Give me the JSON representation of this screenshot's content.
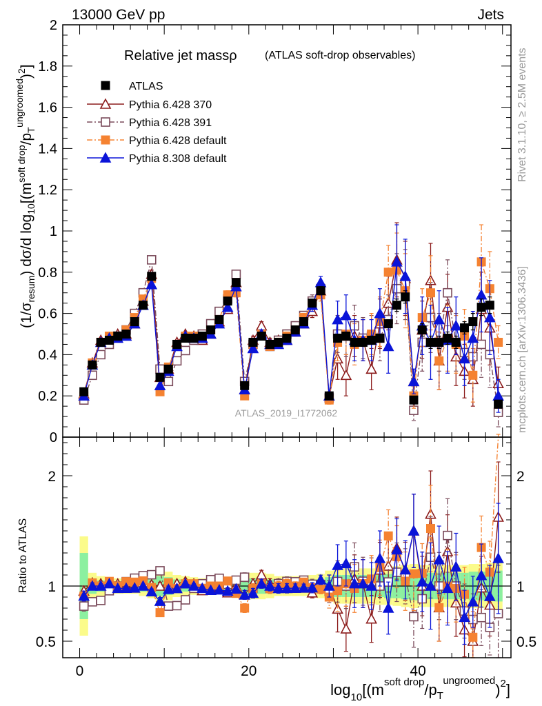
{
  "header": {
    "left": "13000 GeV pp",
    "right": "Jets"
  },
  "side_labels": {
    "rivet": "Rivet 3.1.10, ≥ 2.5M events",
    "mcplots": "mcplots.cern.ch [arXiv:1306.3436]"
  },
  "watermark": "ATLAS_2019_I1772062",
  "chart_data": [
    {
      "type": "scatter",
      "title": "Relative jet massρ",
      "subtitle": "(ATLAS soft-drop observables)",
      "ylabel": "(1/σresum) dσ/d log10[(msoft drop/pTungroomed)2]",
      "xlim": [
        -2,
        51
      ],
      "ylim": [
        0,
        2
      ],
      "y_ticks": [
        0,
        0.2,
        0.4,
        0.6,
        0.8,
        1,
        1.2,
        1.4,
        1.6,
        1.8,
        2
      ],
      "y_tick_labels": [
        "0",
        "0.2",
        "0.4",
        "0.6",
        "0.8",
        "1",
        "1.2",
        "1.4",
        "1.6",
        "1.8",
        "2"
      ],
      "legend_position": "top-left",
      "x": [
        0.5,
        1.5,
        2.5,
        3.5,
        4.5,
        5.5,
        6.5,
        7.5,
        8.5,
        9.5,
        10.5,
        11.5,
        12.5,
        13.5,
        14.5,
        15.5,
        16.5,
        17.5,
        18.5,
        19.5,
        20.5,
        21.5,
        22.5,
        23.5,
        24.5,
        25.5,
        26.5,
        27.5,
        28.5,
        29.5,
        30.5,
        31.5,
        32.5,
        33.5,
        34.5,
        35.5,
        36.5,
        37.5,
        38.5,
        39.5,
        40.5,
        41.5,
        42.5,
        43.5,
        44.5,
        45.5,
        46.5,
        47.5,
        48.5,
        49.5
      ],
      "series": [
        {
          "name": "ATLAS",
          "color": "#000000",
          "marker": "square-filled",
          "values": [
            0.22,
            0.35,
            0.46,
            0.47,
            0.49,
            0.5,
            0.56,
            0.64,
            0.78,
            0.29,
            0.33,
            0.45,
            0.48,
            0.48,
            0.49,
            0.52,
            0.57,
            0.66,
            0.75,
            0.25,
            0.46,
            0.49,
            0.45,
            0.46,
            0.48,
            0.52,
            0.56,
            0.65,
            0.71,
            0.2,
            0.48,
            0.49,
            0.46,
            0.46,
            0.47,
            0.48,
            0.55,
            0.64,
            0.68,
            0.18,
            0.52,
            0.46,
            0.46,
            0.48,
            0.46,
            0.53,
            0.56,
            0.63,
            0.64,
            0.16
          ],
          "errors": [
            0.01,
            0.01,
            0.01,
            0.01,
            0.01,
            0.01,
            0.01,
            0.01,
            0.01,
            0.01,
            0.01,
            0.01,
            0.01,
            0.01,
            0.01,
            0.01,
            0.01,
            0.01,
            0.01,
            0.01,
            0.01,
            0.01,
            0.01,
            0.01,
            0.01,
            0.01,
            0.01,
            0.01,
            0.02,
            0.01,
            0.02,
            0.02,
            0.02,
            0.02,
            0.02,
            0.02,
            0.02,
            0.03,
            0.03,
            0.01,
            0.03,
            0.03,
            0.03,
            0.03,
            0.03,
            0.03,
            0.04,
            0.04,
            0.04,
            0.01
          ]
        },
        {
          "name": "Pythia 6.428 370",
          "color": "#8b1a1a",
          "marker": "triangle-open",
          "line": "solid",
          "values": [
            0.21,
            0.36,
            0.47,
            0.48,
            0.5,
            0.5,
            0.55,
            0.66,
            0.79,
            0.29,
            0.33,
            0.46,
            0.5,
            0.49,
            0.47,
            0.5,
            0.56,
            0.62,
            0.75,
            0.23,
            0.47,
            0.54,
            0.46,
            0.47,
            0.47,
            0.51,
            0.55,
            0.61,
            0.71,
            0.2,
            0.38,
            0.3,
            0.49,
            0.47,
            0.33,
            0.55,
            0.65,
            0.86,
            0.77,
            0.27,
            0.52,
            0.76,
            0.37,
            0.63,
            0.39,
            0.32,
            0.28,
            0.62,
            0.53,
            0.26
          ],
          "errors": [
            0.01,
            0.01,
            0.01,
            0.01,
            0.01,
            0.01,
            0.01,
            0.01,
            0.02,
            0.01,
            0.01,
            0.01,
            0.01,
            0.01,
            0.01,
            0.01,
            0.01,
            0.02,
            0.02,
            0.01,
            0.02,
            0.02,
            0.02,
            0.02,
            0.02,
            0.02,
            0.02,
            0.03,
            0.03,
            0.02,
            0.1,
            0.1,
            0.1,
            0.1,
            0.1,
            0.12,
            0.13,
            0.18,
            0.18,
            0.06,
            0.14,
            0.18,
            0.14,
            0.16,
            0.14,
            0.13,
            0.13,
            0.18,
            0.18,
            0.08
          ]
        },
        {
          "name": "Pythia 6.428 391",
          "color": "#7a4a5a",
          "marker": "square-open",
          "line": "dashdot",
          "values": [
            0.18,
            0.3,
            0.4,
            0.45,
            0.49,
            0.52,
            0.6,
            0.7,
            0.86,
            0.33,
            0.27,
            0.37,
            0.42,
            0.47,
            0.5,
            0.55,
            0.61,
            0.67,
            0.79,
            0.27,
            0.45,
            0.5,
            0.44,
            0.47,
            0.5,
            0.54,
            0.59,
            0.66,
            0.72,
            0.19,
            0.5,
            0.49,
            0.54,
            0.48,
            0.49,
            0.48,
            0.57,
            0.72,
            0.74,
            0.13,
            0.46,
            0.58,
            0.46,
            0.7,
            0.46,
            0.41,
            0.39,
            0.45,
            0.4,
            0.12
          ],
          "errors": [
            0.01,
            0.01,
            0.01,
            0.01,
            0.01,
            0.01,
            0.01,
            0.01,
            0.02,
            0.01,
            0.01,
            0.01,
            0.01,
            0.01,
            0.01,
            0.01,
            0.01,
            0.02,
            0.02,
            0.01,
            0.02,
            0.02,
            0.02,
            0.02,
            0.02,
            0.02,
            0.02,
            0.03,
            0.03,
            0.02,
            0.09,
            0.1,
            0.1,
            0.1,
            0.1,
            0.11,
            0.12,
            0.17,
            0.17,
            0.05,
            0.14,
            0.17,
            0.14,
            0.16,
            0.14,
            0.13,
            0.13,
            0.16,
            0.16,
            0.07
          ]
        },
        {
          "name": "Pythia 6.428 default",
          "color": "#f58231",
          "marker": "square-filled",
          "line": "dashdot",
          "values": [
            0.2,
            0.36,
            0.46,
            0.49,
            0.49,
            0.52,
            0.58,
            0.67,
            0.77,
            0.22,
            0.34,
            0.44,
            0.49,
            0.49,
            0.48,
            0.52,
            0.57,
            0.69,
            0.7,
            0.2,
            0.45,
            0.5,
            0.44,
            0.46,
            0.49,
            0.52,
            0.58,
            0.64,
            0.69,
            0.18,
            0.46,
            0.5,
            0.45,
            0.47,
            0.5,
            0.56,
            0.8,
            0.81,
            0.71,
            0.2,
            0.58,
            0.7,
            0.37,
            0.48,
            0.45,
            0.49,
            0.3,
            0.85,
            0.72,
            0.46
          ],
          "errors": [
            0.01,
            0.01,
            0.01,
            0.01,
            0.01,
            0.01,
            0.01,
            0.01,
            0.02,
            0.01,
            0.01,
            0.01,
            0.01,
            0.01,
            0.01,
            0.01,
            0.01,
            0.02,
            0.02,
            0.01,
            0.02,
            0.02,
            0.02,
            0.02,
            0.02,
            0.02,
            0.02,
            0.03,
            0.03,
            0.02,
            0.09,
            0.1,
            0.1,
            0.1,
            0.1,
            0.12,
            0.13,
            0.18,
            0.18,
            0.06,
            0.14,
            0.18,
            0.14,
            0.16,
            0.14,
            0.13,
            0.13,
            0.18,
            0.18,
            0.08
          ]
        },
        {
          "name": "Pythia 8.308 default",
          "color": "#0a14d8",
          "marker": "triangle-filled",
          "line": "solid",
          "values": [
            0.2,
            0.35,
            0.46,
            0.48,
            0.48,
            0.49,
            0.55,
            0.64,
            0.74,
            0.25,
            0.32,
            0.44,
            0.49,
            0.48,
            0.48,
            0.5,
            0.55,
            0.63,
            0.73,
            0.23,
            0.43,
            0.5,
            0.45,
            0.45,
            0.47,
            0.51,
            0.55,
            0.64,
            0.75,
            0.2,
            0.57,
            0.59,
            0.47,
            0.47,
            0.47,
            0.6,
            0.44,
            0.85,
            0.78,
            0.27,
            0.54,
            0.46,
            0.57,
            0.47,
            0.54,
            0.38,
            0.48,
            0.69,
            0.58,
            0.2
          ],
          "errors": [
            0.01,
            0.01,
            0.01,
            0.01,
            0.01,
            0.01,
            0.01,
            0.01,
            0.02,
            0.01,
            0.01,
            0.01,
            0.01,
            0.01,
            0.01,
            0.01,
            0.01,
            0.02,
            0.02,
            0.01,
            0.02,
            0.02,
            0.02,
            0.02,
            0.02,
            0.02,
            0.02,
            0.03,
            0.03,
            0.02,
            0.09,
            0.1,
            0.1,
            0.1,
            0.1,
            0.12,
            0.13,
            0.18,
            0.18,
            0.06,
            0.14,
            0.18,
            0.14,
            0.16,
            0.14,
            0.13,
            0.13,
            0.18,
            0.18,
            0.08
          ]
        }
      ]
    },
    {
      "type": "scatter",
      "ylabel": "Ratio to ATLAS",
      "xlabel": "log10[(msoft drop/pTungroomed)2]",
      "xlim": [
        -2,
        51
      ],
      "ylim": [
        0.35,
        2.35
      ],
      "x_ticks": [
        0,
        20,
        40
      ],
      "x_tick_labels": [
        "0",
        "20",
        "40"
      ],
      "y_ticks": [
        0.5,
        1,
        2
      ],
      "y_tick_labels": [
        "0.5",
        "1",
        "2"
      ],
      "reference_line": 1,
      "uncertainty_band_inner": [
        0.3,
        0.07,
        0.05,
        0.05,
        0.04,
        0.04,
        0.04,
        0.05,
        0.06,
        0.09,
        0.08,
        0.06,
        0.05,
        0.04,
        0.04,
        0.04,
        0.04,
        0.05,
        0.05,
        0.07,
        0.07,
        0.07,
        0.06,
        0.05,
        0.05,
        0.05,
        0.05,
        0.06,
        0.06,
        0.08,
        0.1,
        0.1,
        0.1,
        0.1,
        0.1,
        0.1,
        0.11,
        0.11,
        0.12,
        0.13,
        0.12,
        0.12,
        0.12,
        0.12,
        0.12,
        0.12,
        0.13,
        0.13,
        0.13,
        0.14
      ],
      "uncertainty_band_outer": [
        0.45,
        0.12,
        0.09,
        0.08,
        0.07,
        0.07,
        0.07,
        0.09,
        0.11,
        0.15,
        0.13,
        0.1,
        0.09,
        0.08,
        0.07,
        0.07,
        0.07,
        0.08,
        0.09,
        0.12,
        0.12,
        0.12,
        0.11,
        0.09,
        0.09,
        0.09,
        0.09,
        0.1,
        0.11,
        0.14,
        0.16,
        0.16,
        0.16,
        0.16,
        0.16,
        0.17,
        0.17,
        0.18,
        0.19,
        0.2,
        0.19,
        0.19,
        0.19,
        0.19,
        0.19,
        0.19,
        0.2,
        0.2,
        0.21,
        0.22
      ]
    }
  ]
}
